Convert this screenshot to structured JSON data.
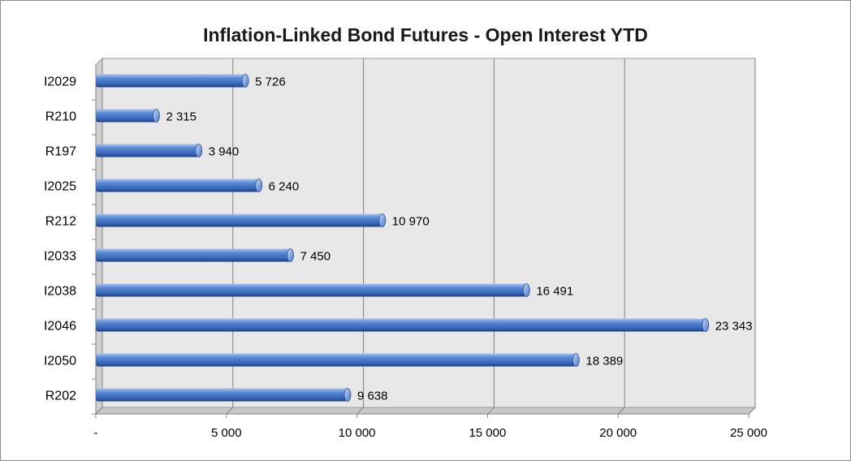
{
  "chart_data": {
    "type": "bar",
    "orientation": "horizontal",
    "title": "Inflation-Linked Bond Futures - Open Interest YTD",
    "categories": [
      "I2029",
      "R210",
      "R197",
      "I2025",
      "R212",
      "I2033",
      "I2038",
      "I2046",
      "I2050",
      "R202"
    ],
    "values": [
      5726,
      2315,
      3940,
      6240,
      10970,
      7450,
      16491,
      23343,
      18389,
      9638
    ],
    "data_labels": [
      "5 726",
      "2 315",
      "3 940",
      "6 240",
      "10 970",
      "7 450",
      "16 491",
      "23 343",
      "18 389",
      "9 638"
    ],
    "xlim": [
      0,
      25000
    ],
    "x_ticks": [
      0,
      5000,
      10000,
      15000,
      20000,
      25000
    ],
    "x_tick_labels": [
      "-",
      "5 000",
      "10 000",
      "15 000",
      "20 000",
      "25 000"
    ],
    "grid": "vertical",
    "legend": "none",
    "colors": {
      "bar": "#3f6fc0",
      "bar_dark": "#1f3f80",
      "bar_light": "#a9c3ee",
      "wall": "#e8e8e8",
      "grid": "#808080"
    }
  }
}
